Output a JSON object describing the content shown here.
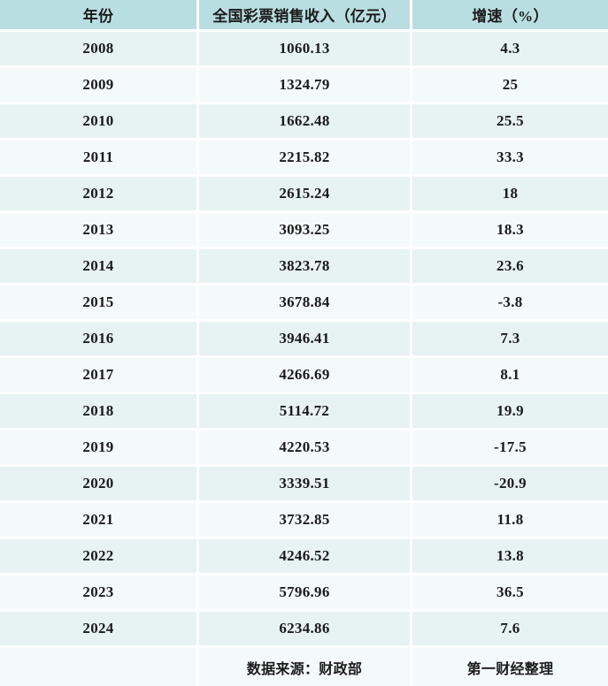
{
  "table": {
    "columns": [
      {
        "key": "year",
        "label": "年份"
      },
      {
        "key": "revenue",
        "label": "全国彩票销售收入（亿元）"
      },
      {
        "key": "growth",
        "label": "增速（%）"
      }
    ],
    "rows": [
      {
        "year": "2008",
        "revenue": "1060.13",
        "growth": "4.3"
      },
      {
        "year": "2009",
        "revenue": "1324.79",
        "growth": "25"
      },
      {
        "year": "2010",
        "revenue": "1662.48",
        "growth": "25.5"
      },
      {
        "year": "2011",
        "revenue": "2215.82",
        "growth": "33.3"
      },
      {
        "year": "2012",
        "revenue": "2615.24",
        "growth": "18"
      },
      {
        "year": "2013",
        "revenue": "3093.25",
        "growth": "18.3"
      },
      {
        "year": "2014",
        "revenue": "3823.78",
        "growth": "23.6"
      },
      {
        "year": "2015",
        "revenue": "3678.84",
        "growth": "-3.8"
      },
      {
        "year": "2016",
        "revenue": "3946.41",
        "growth": "7.3"
      },
      {
        "year": "2017",
        "revenue": "4266.69",
        "growth": "8.1"
      },
      {
        "year": "2018",
        "revenue": "5114.72",
        "growth": "19.9"
      },
      {
        "year": "2019",
        "revenue": "4220.53",
        "growth": "-17.5"
      },
      {
        "year": "2020",
        "revenue": "3339.51",
        "growth": "-20.9"
      },
      {
        "year": "2021",
        "revenue": "3732.85",
        "growth": "11.8"
      },
      {
        "year": "2022",
        "revenue": "4246.52",
        "growth": "13.8"
      },
      {
        "year": "2023",
        "revenue": "5796.96",
        "growth": "36.5"
      },
      {
        "year": "2024",
        "revenue": "6234.86",
        "growth": "7.6"
      }
    ],
    "footer": {
      "year": "",
      "source": "数据来源：财政部",
      "credit": "第一财经整理"
    }
  },
  "colors": {
    "header_bg": "#b9dee1",
    "row_odd_bg": "#e7f2f3",
    "row_even_bg": "#f4f9fa",
    "separator": "#ffffff",
    "text": "#1b1b1b"
  },
  "chart_data": {
    "type": "table",
    "title": "",
    "categories": [
      "2008",
      "2009",
      "2010",
      "2011",
      "2012",
      "2013",
      "2014",
      "2015",
      "2016",
      "2017",
      "2018",
      "2019",
      "2020",
      "2021",
      "2022",
      "2023",
      "2024"
    ],
    "series": [
      {
        "name": "全国彩票销售收入（亿元）",
        "values": [
          1060.13,
          1324.79,
          1662.48,
          2215.82,
          2615.24,
          3093.25,
          3823.78,
          3678.84,
          3946.41,
          4266.69,
          5114.72,
          4220.53,
          3339.51,
          3732.85,
          4246.52,
          5796.96,
          6234.86
        ]
      },
      {
        "name": "增速（%）",
        "values": [
          4.3,
          25,
          25.5,
          33.3,
          18,
          18.3,
          23.6,
          -3.8,
          7.3,
          8.1,
          19.9,
          -17.5,
          -20.9,
          11.8,
          13.8,
          36.5,
          7.6
        ]
      }
    ],
    "source_note": "数据来源：财政部",
    "credit_note": "第一财经整理"
  }
}
